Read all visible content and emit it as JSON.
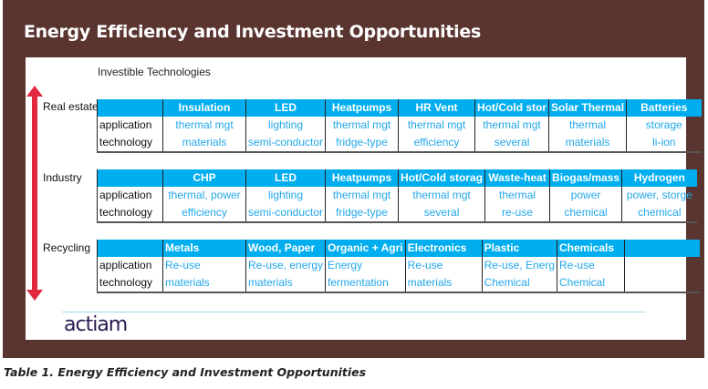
{
  "title": "Energy Efficiency and Investment Opportunities",
  "subtitle": "Investible Technologies",
  "logo": "actiam",
  "caption": "Table 1. Energy Efficiency and Investment Opportunities",
  "sections": [
    {
      "label": "Real estate",
      "align": "center",
      "headers": [
        "",
        "Insulation",
        "LED",
        "Heatpumps",
        "HR Vent",
        "Hot/Cold stor",
        "Solar Thermal",
        "Batteries"
      ],
      "rows": [
        [
          "application",
          "thermal mgt",
          "lighting",
          "thermal mgt",
          "thermal mgt",
          "thermal mgt",
          "thermal",
          "storage"
        ],
        [
          "technology",
          "materials",
          "semi-conductor",
          "fridge-type",
          "efficiency",
          "several",
          "materials",
          "li-ion"
        ]
      ]
    },
    {
      "label": "Industry",
      "align": "center",
      "headers": [
        "",
        "CHP",
        "LED",
        "Heatpumps",
        "Hot/Cold storag",
        "Waste-heat",
        "Biogas/mass",
        "Hydrogen"
      ],
      "rows": [
        [
          "application",
          "thermal, power",
          "lighting",
          "thermal mgt",
          "thermal mgt",
          "thermal",
          "power",
          "power, storge"
        ],
        [
          "technology",
          "efficiency",
          "semi-conductor",
          "fridge-type",
          "several",
          "re-use",
          "chemical",
          "chemical"
        ]
      ]
    },
    {
      "label": "Recycling",
      "align": "left",
      "headers": [
        "",
        "Metals",
        "Wood, Paper",
        "Organic + Agri",
        "Electronics",
        "Plastic",
        "Chemicals",
        ""
      ],
      "rows": [
        [
          "application",
          "Re-use",
          "Re-use, energy",
          "Energy",
          "Re-use",
          "Re-use, Energ",
          "Re-use",
          ""
        ],
        [
          "technology",
          "materials",
          "materials",
          "fermentation",
          "materials",
          "Chemical",
          "Chemical",
          ""
        ]
      ]
    }
  ]
}
